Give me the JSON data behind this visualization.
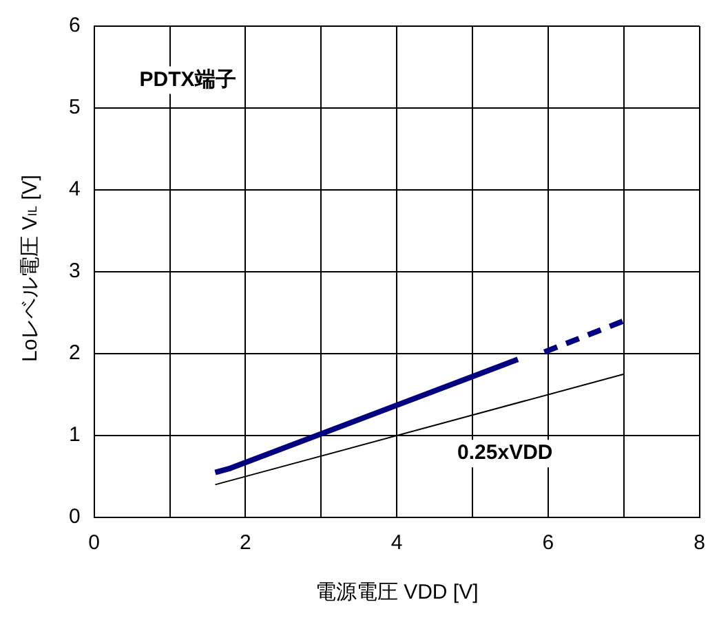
{
  "chart_data": {
    "type": "line",
    "xlabel": "電源電圧 VDD [V]",
    "ylabel": "Loレベル電圧 V$_{IL}$ [V]",
    "xlim": [
      0,
      8
    ],
    "xticks": [
      0,
      {
        "value": 1,
        "label": null
      },
      2,
      {
        "value": 3,
        "label": null
      },
      4,
      {
        "value": 5,
        "label": null
      },
      6,
      {
        "value": 7,
        "label": null
      },
      8
    ],
    "ylim": [
      0,
      6
    ],
    "yticks": [
      0,
      1,
      2,
      3,
      4,
      5,
      6
    ],
    "grid": true,
    "legend": false,
    "marker": "none",
    "series": [
      {
        "color": "#000080",
        "line_style": "solid",
        "x": [
          1.6,
          1.8,
          5.6
        ],
        "values": [
          0.55,
          0.6,
          1.93
        ]
      },
      {
        "color": "#000080",
        "line_style": "dashed",
        "x": [
          5.95,
          7
        ],
        "values": [
          2.02,
          2.4
        ]
      },
      {
        "color": "#000000",
        "line_style": "solid",
        "x": [
          1.6,
          7
        ],
        "values": [
          0.4,
          1.75
        ]
      }
    ],
    "annotations": [
      "PDTX端子",
      "0.25xVDD"
    ]
  }
}
